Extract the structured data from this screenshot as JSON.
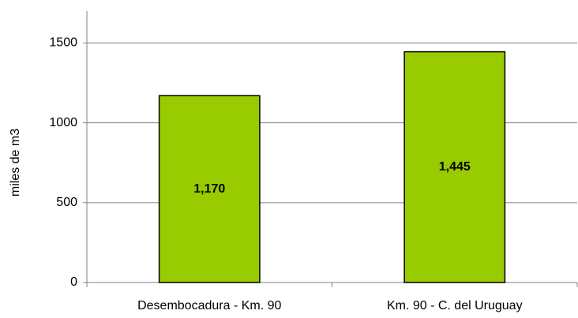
{
  "chart_data": {
    "type": "bar",
    "y_label": "miles de m3",
    "categories": [
      "Desembocadura - Km. 90",
      "Km. 90 - C. del Uruguay"
    ],
    "values": [
      1170,
      1445
    ],
    "value_labels": [
      "1,170",
      "1,445"
    ],
    "color": "#99cc00",
    "ylim": [
      0,
      1700
    ],
    "yticks": [
      0,
      500,
      1000,
      1500
    ],
    "grid": true
  }
}
